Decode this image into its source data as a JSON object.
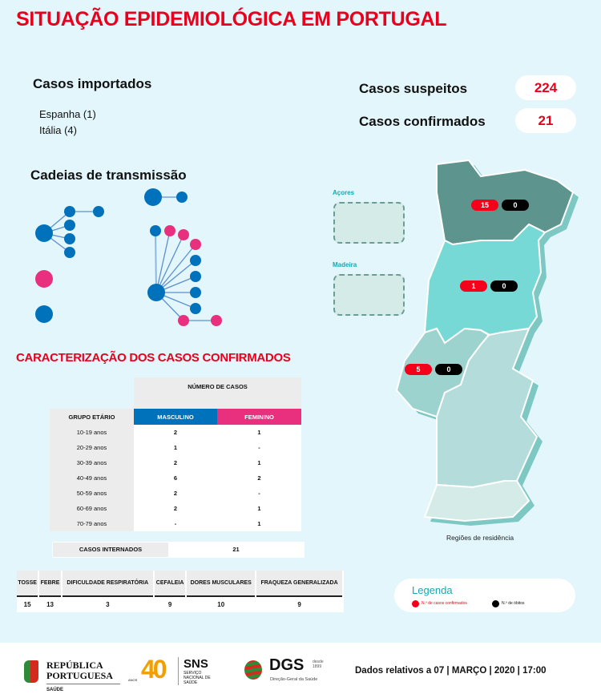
{
  "title": "SITUAÇÃO EPIDEMIOLÓGICA EM PORTUGAL",
  "imported": {
    "heading": "Casos importados",
    "items": [
      "Espanha (1)",
      "Itália (4)"
    ]
  },
  "stats": {
    "suspected_label": "Casos suspeitos",
    "suspected": "224",
    "confirmed_label": "Casos confirmados",
    "confirmed": "21"
  },
  "chains": {
    "heading": "Cadeias de transmissão",
    "colors": {
      "male": "#0072bc",
      "female": "#e8307f"
    }
  },
  "characterization": {
    "heading": "CARACTERIZAÇÃO DOS CASOS CONFIRMADOS",
    "num_cases_header": "NÚMERO DE CASOS",
    "age_header": "GRUPO ETÁRIO",
    "male_header": "MASCULINO",
    "female_header": "FEMININO",
    "rows": [
      [
        "10-19 anos",
        "2",
        "1"
      ],
      [
        "20-29 anos",
        "1",
        "-"
      ],
      [
        "30-39 anos",
        "2",
        "1"
      ],
      [
        "40-49 anos",
        "6",
        "2"
      ],
      [
        "50-59 anos",
        "2",
        "-"
      ],
      [
        "60-69 anos",
        "2",
        "1"
      ],
      [
        "70-79 anos",
        "-",
        "1"
      ]
    ],
    "hospitalized_label": "CASOS INTERNADOS",
    "hospitalized": "21"
  },
  "symptoms": {
    "headers": [
      "TOSSE",
      "FEBRE",
      "DIFICULDADE RESPIRATÓRIA",
      "CEFALEIA",
      "DORES MUSCULARES",
      "FRAQUEZA GENERALIZADA"
    ],
    "values": [
      "15",
      "13",
      "3",
      "9",
      "10",
      "9"
    ]
  },
  "map": {
    "azores_label": "Açores",
    "madeira_label": "Madeira",
    "regions": [
      {
        "name": "Norte",
        "confirmed": "15",
        "deaths": "0"
      },
      {
        "name": "Centro",
        "confirmed": "1",
        "deaths": "0"
      },
      {
        "name": "Lisboa e Vale do Tejo",
        "confirmed": "5",
        "deaths": "0"
      }
    ],
    "caption": "Regiões de residência"
  },
  "legend": {
    "title": "Legenda",
    "confirmed": "N.º de casos confirmados",
    "deaths": "N.º de óbitos"
  },
  "footer": {
    "logos": [
      "REPÚBLICA PORTUGUESA",
      "SAÚDE",
      "40",
      "ANOS",
      "SNS",
      "SERVIÇO NACIONAL DE SAÚDE",
      "DGS",
      "desde 1899",
      "Direção-Geral da Saúde"
    ],
    "date_text": "Dados relativos a 07 | MARÇO | 2020 | 17:00"
  }
}
